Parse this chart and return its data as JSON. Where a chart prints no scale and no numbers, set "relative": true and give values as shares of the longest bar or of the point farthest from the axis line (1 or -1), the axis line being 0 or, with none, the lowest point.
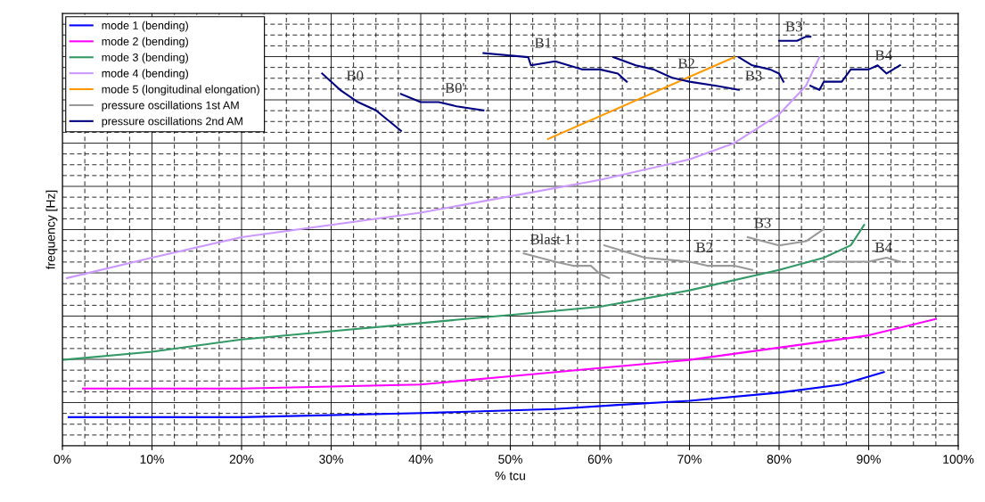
{
  "chart_data": {
    "type": "line",
    "relative": true,
    "xlabel": "% tcu",
    "ylabel": "frequency [Hz]",
    "xlim": [
      0,
      100
    ],
    "xticks": [
      {
        "value": 0,
        "label": "0%"
      },
      {
        "value": 10,
        "label": "10%"
      },
      {
        "value": 20,
        "label": "20%"
      },
      {
        "value": 30,
        "label": "30%"
      },
      {
        "value": 40,
        "label": "40%"
      },
      {
        "value": 50,
        "label": "50%"
      },
      {
        "value": 60,
        "label": "60%"
      },
      {
        "value": 70,
        "label": "70%"
      },
      {
        "value": 80,
        "label": "80%"
      },
      {
        "value": 90,
        "label": "90%"
      },
      {
        "value": 100,
        "label": "100%"
      }
    ],
    "grid": true,
    "legend": "top left",
    "marker": "none",
    "line_style": "solid",
    "series": [
      {
        "name": "mode 1 (bending)",
        "color": "#0000ff",
        "x": [
          0.7,
          20,
          40,
          55,
          62,
          70,
          80,
          87,
          91.7
        ],
        "values": [
          0.07,
          0.07,
          0.08,
          0.09,
          0.1,
          0.11,
          0.13,
          0.15,
          0.18
        ]
      },
      {
        "name": "mode 2 (bending)",
        "color": "#ff00ff",
        "x": [
          2.3,
          20,
          40,
          50,
          60,
          70,
          80,
          90,
          97.5
        ],
        "values": [
          0.14,
          0.14,
          0.15,
          0.17,
          0.19,
          0.21,
          0.24,
          0.27,
          0.31
        ]
      },
      {
        "name": "mode 3 (bending)",
        "color": "#339966",
        "x": [
          0,
          10,
          20,
          30,
          40,
          50,
          60,
          70,
          80,
          85,
          88,
          89.5
        ],
        "values": [
          0.21,
          0.23,
          0.26,
          0.28,
          0.3,
          0.32,
          0.34,
          0.38,
          0.43,
          0.46,
          0.49,
          0.54
        ]
      },
      {
        "name": "mode 4 (bending)",
        "color": "#cc99ff",
        "x": [
          0.5,
          10,
          20,
          30,
          40,
          50,
          60,
          70,
          75,
          80,
          83,
          84.5
        ],
        "values": [
          0.41,
          0.46,
          0.51,
          0.54,
          0.57,
          0.61,
          0.65,
          0.7,
          0.74,
          0.81,
          0.88,
          0.95
        ]
      },
      {
        "name": "mode 5 (longitudinal elongation)",
        "color": "#ff9900",
        "x": [
          54.2,
          75
        ],
        "values": [
          0.75,
          0.95
        ]
      },
      {
        "name": "pressure oscillations 1st AM",
        "color": "#999999",
        "x": [
          51.5,
          55,
          57,
          59,
          60,
          61,
          null,
          60.5,
          62,
          65,
          70,
          72,
          75,
          77,
          null,
          76.5,
          80,
          83,
          85,
          null,
          85.5,
          88,
          90,
          92,
          93.5
        ],
        "values": [
          0.47,
          0.45,
          0.44,
          0.44,
          0.42,
          0.41,
          null,
          0.49,
          0.48,
          0.46,
          0.45,
          0.44,
          0.44,
          0.43,
          null,
          0.51,
          0.49,
          0.5,
          0.53,
          null,
          0.45,
          0.45,
          0.45,
          0.46,
          0.45
        ]
      },
      {
        "name": "pressure oscillations 2nd AM",
        "color": "#000080",
        "x": [
          29,
          31,
          33,
          35,
          37.8,
          null,
          37.8,
          40,
          42,
          44,
          47,
          null,
          47,
          52,
          52.3,
          55,
          58,
          60,
          62,
          63,
          null,
          61.5,
          64,
          66,
          68,
          70,
          73,
          75.5,
          null,
          75.5,
          77,
          79,
          80,
          80.5,
          null,
          80,
          82,
          83,
          83.5,
          null,
          83.5,
          84.5,
          85,
          87,
          88,
          90,
          91,
          92,
          93.5
        ],
        "values": [
          0.91,
          0.87,
          0.84,
          0.82,
          0.77,
          null,
          0.86,
          0.84,
          0.84,
          0.83,
          0.82,
          null,
          0.96,
          0.95,
          0.93,
          0.94,
          0.92,
          0.92,
          0.91,
          0.89,
          null,
          0.95,
          0.93,
          0.92,
          0.9,
          0.89,
          0.88,
          0.87,
          null,
          0.95,
          0.93,
          0.92,
          0.91,
          0.89,
          null,
          0.99,
          0.99,
          1.0,
          1.0,
          null,
          0.88,
          0.87,
          0.89,
          0.89,
          0.92,
          0.92,
          0.93,
          0.91,
          0.93
        ]
      }
    ],
    "annotations": [
      {
        "text": "B0",
        "x": 31,
        "y": 0.87
      },
      {
        "text": "B0'",
        "x": 42,
        "y": 0.84
      },
      {
        "text": "B1",
        "x": 52,
        "y": 0.95
      },
      {
        "text": "B2",
        "x": 68,
        "y": 0.9
      },
      {
        "text": "B3",
        "x": 75.5,
        "y": 0.87
      },
      {
        "text": "B3'",
        "x": 80,
        "y": 0.99
      },
      {
        "text": "B4",
        "x": 90,
        "y": 0.92
      },
      {
        "text": "Blast 1",
        "x": 51.5,
        "y": 0.47
      },
      {
        "text": "B2",
        "x": 70,
        "y": 0.45
      },
      {
        "text": "B3",
        "x": 76.5,
        "y": 0.51
      },
      {
        "text": "B4",
        "x": 90,
        "y": 0.45
      }
    ]
  }
}
